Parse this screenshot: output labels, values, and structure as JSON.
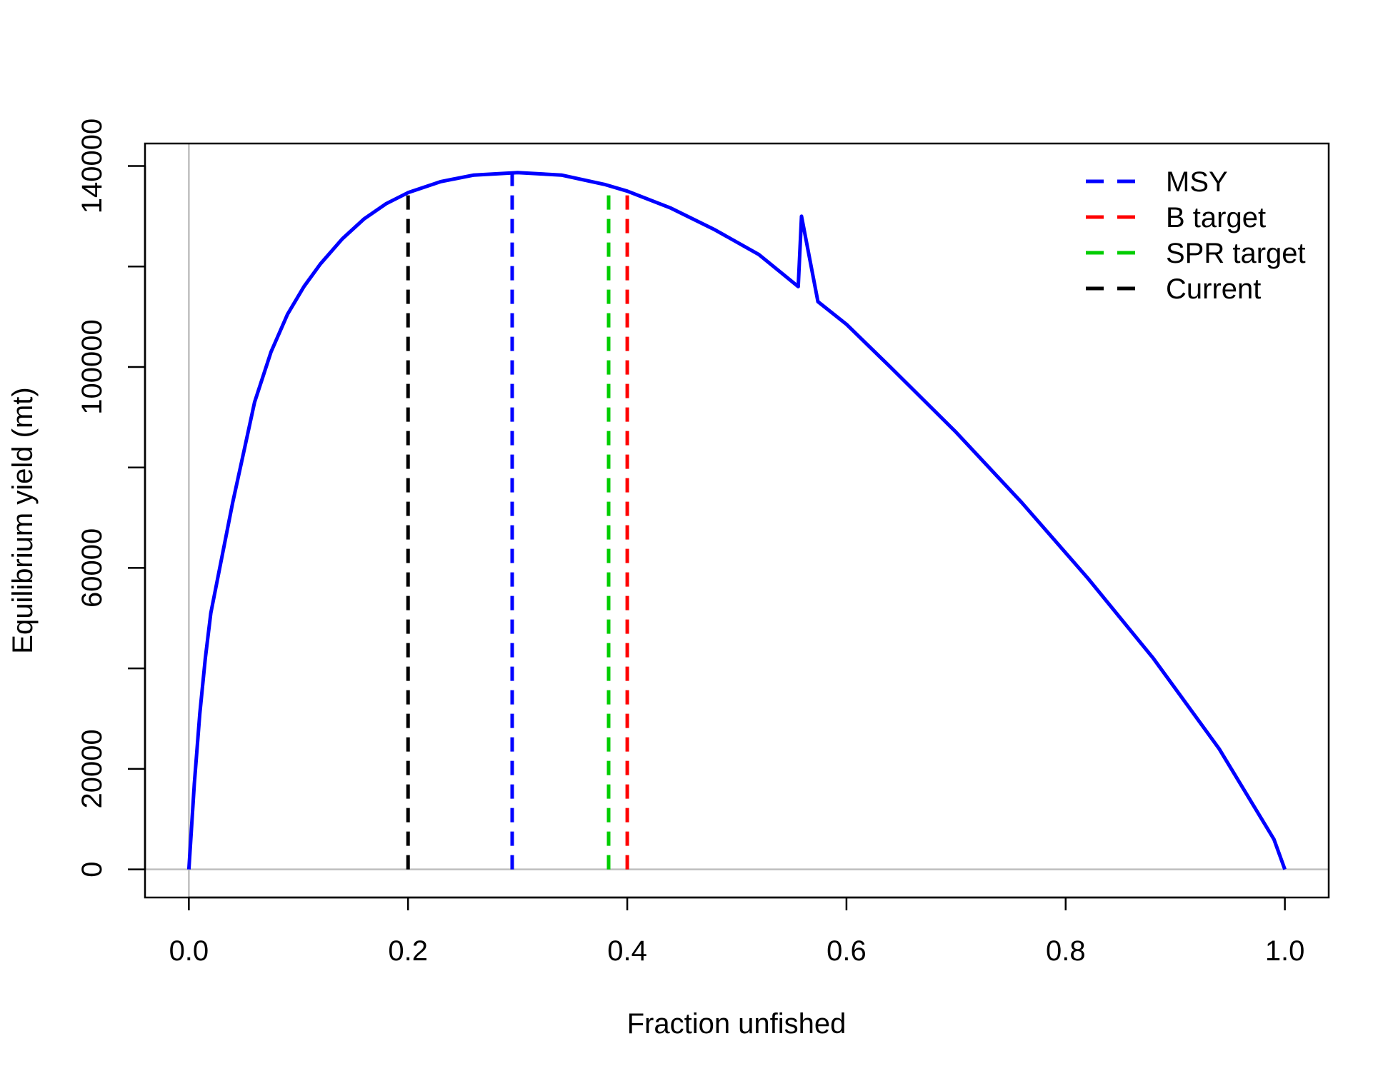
{
  "chart_data": {
    "type": "line",
    "title": "",
    "xlabel": "Fraction unfished",
    "ylabel": "Equilibrium yield (mt)",
    "xlim": [
      -0.04,
      1.04
    ],
    "ylim": [
      -5600,
      144480
    ],
    "xticks": [
      0.0,
      0.2,
      0.4,
      0.6,
      0.8,
      1.0
    ],
    "xtick_labels": [
      "0.0",
      "0.2",
      "0.4",
      "0.6",
      "0.8",
      "1.0"
    ],
    "yticks": [
      0,
      20000,
      40000,
      60000,
      80000,
      100000,
      120000,
      140000
    ],
    "ytick_labels": [
      "0",
      "20000",
      "",
      "60000",
      "",
      "100000",
      "",
      "140000"
    ],
    "grid": false,
    "reference_lines": [
      {
        "orientation": "vertical",
        "x": 0.0,
        "color": "#bebebe"
      },
      {
        "orientation": "horizontal",
        "y": 0,
        "color": "#bebebe"
      }
    ],
    "series": [
      {
        "color": "#0000ff",
        "x": [
          0.0,
          0.005,
          0.01,
          0.015,
          0.02,
          0.03,
          0.04,
          0.05,
          0.06,
          0.075,
          0.09,
          0.105,
          0.12,
          0.14,
          0.16,
          0.18,
          0.2,
          0.23,
          0.26,
          0.3,
          0.34,
          0.38,
          0.4,
          0.44,
          0.48,
          0.52,
          0.556,
          0.559,
          0.574,
          0.6,
          0.64,
          0.7,
          0.76,
          0.82,
          0.88,
          0.94,
          0.99,
          1.0
        ],
        "y": [
          0,
          17000,
          31000,
          42000,
          51000,
          62000,
          73000,
          83000,
          93000,
          103000,
          110500,
          116000,
          120500,
          125500,
          129500,
          132500,
          134700,
          136900,
          138200,
          138700,
          138200,
          136300,
          135000,
          131600,
          127300,
          122400,
          116000,
          130000,
          113000,
          108500,
          100000,
          87000,
          73000,
          58000,
          42000,
          24000,
          6000,
          0
        ]
      }
    ],
    "vlines": [
      {
        "name": "MSY",
        "x": 0.295,
        "ymax": 138700,
        "color": "#0000ff"
      },
      {
        "name": "B target",
        "x": 0.4,
        "ymax": 135000,
        "color": "#ff0000"
      },
      {
        "name": "SPR target",
        "x": 0.383,
        "ymax": 136300,
        "color": "#00cd00"
      },
      {
        "name": "Current",
        "x": 0.2,
        "ymax": 134700,
        "color": "#000000"
      }
    ],
    "legend": {
      "position": "top-right",
      "entries": [
        {
          "label": "MSY",
          "color": "#0000ff"
        },
        {
          "label": "B target",
          "color": "#ff0000"
        },
        {
          "label": "SPR target",
          "color": "#00cd00"
        },
        {
          "label": "Current",
          "color": "#000000"
        }
      ]
    }
  }
}
